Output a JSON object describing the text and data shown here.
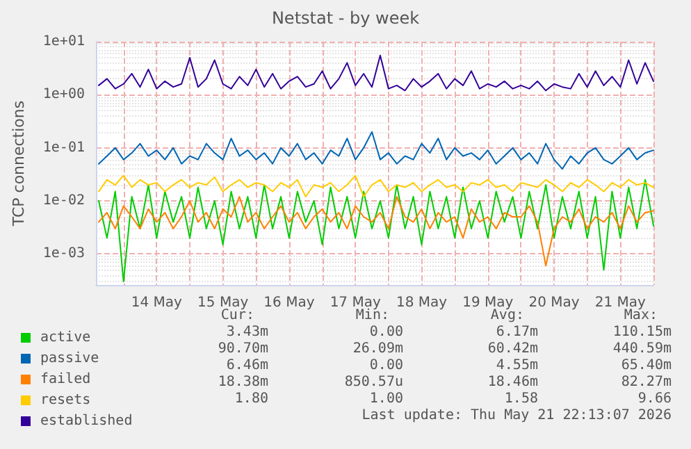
{
  "chart_data": {
    "type": "line",
    "title": "Netstat - by week",
    "ylabel": "TCP connections",
    "log": "y",
    "grid": true,
    "legend": "bottom left",
    "marker": "none",
    "line_style": "solid",
    "xlim": [
      "2026-05-13T14:00",
      "2026-05-22T00:00"
    ],
    "xticks": [
      {
        "value": "2026-05-14T00:00",
        "label": null
      },
      {
        "value": "2026-05-14T12:00",
        "label": "14 May"
      },
      {
        "value": "2026-05-15T00:00",
        "label": null
      },
      {
        "value": "2026-05-15T12:00",
        "label": "15 May"
      },
      {
        "value": "2026-05-16T00:00",
        "label": null
      },
      {
        "value": "2026-05-16T12:00",
        "label": "16 May"
      },
      {
        "value": "2026-05-17T00:00",
        "label": null
      },
      {
        "value": "2026-05-17T12:00",
        "label": "17 May"
      },
      {
        "value": "2026-05-18T00:00",
        "label": null
      },
      {
        "value": "2026-05-18T12:00",
        "label": "18 May"
      },
      {
        "value": "2026-05-19T00:00",
        "label": null
      },
      {
        "value": "2026-05-19T12:00",
        "label": "19 May"
      },
      {
        "value": "2026-05-20T00:00",
        "label": null
      },
      {
        "value": "2026-05-20T12:00",
        "label": "20 May"
      },
      {
        "value": "2026-05-21T00:00",
        "label": null
      },
      {
        "value": "2026-05-21T12:00",
        "label": "21 May"
      },
      {
        "value": "2026-05-22T00:00",
        "label": null
      }
    ],
    "ylim": [
      0.00026,
      10
    ],
    "yticks": [
      {
        "value": 0.001,
        "label": "1e-03"
      },
      {
        "value": 0.01,
        "label": "1e-02"
      },
      {
        "value": 0.1,
        "label": "1e-01"
      },
      {
        "value": 1,
        "label": "1e+00"
      },
      {
        "value": 10,
        "label": "1e+01"
      }
    ],
    "x": [
      "2026-05-13T15:00",
      "2026-05-13T18:00",
      "2026-05-13T21:00",
      "2026-05-14T00:00",
      "2026-05-14T03:00",
      "2026-05-14T06:00",
      "2026-05-14T09:00",
      "2026-05-14T12:00",
      "2026-05-14T15:00",
      "2026-05-14T18:00",
      "2026-05-14T21:00",
      "2026-05-15T00:00",
      "2026-05-15T03:00",
      "2026-05-15T06:00",
      "2026-05-15T09:00",
      "2026-05-15T12:00",
      "2026-05-15T15:00",
      "2026-05-15T18:00",
      "2026-05-15T21:00",
      "2026-05-16T00:00",
      "2026-05-16T03:00",
      "2026-05-16T06:00",
      "2026-05-16T09:00",
      "2026-05-16T12:00",
      "2026-05-16T15:00",
      "2026-05-16T18:00",
      "2026-05-16T21:00",
      "2026-05-17T00:00",
      "2026-05-17T03:00",
      "2026-05-17T06:00",
      "2026-05-17T09:00",
      "2026-05-17T12:00",
      "2026-05-17T15:00",
      "2026-05-17T18:00",
      "2026-05-17T21:00",
      "2026-05-18T00:00",
      "2026-05-18T03:00",
      "2026-05-18T06:00",
      "2026-05-18T09:00",
      "2026-05-18T12:00",
      "2026-05-18T15:00",
      "2026-05-18T18:00",
      "2026-05-18T21:00",
      "2026-05-19T00:00",
      "2026-05-19T03:00",
      "2026-05-19T06:00",
      "2026-05-19T09:00",
      "2026-05-19T12:00",
      "2026-05-19T15:00",
      "2026-05-19T18:00",
      "2026-05-19T21:00",
      "2026-05-20T00:00",
      "2026-05-20T03:00",
      "2026-05-20T06:00",
      "2026-05-20T09:00",
      "2026-05-20T12:00",
      "2026-05-20T15:00",
      "2026-05-20T18:00",
      "2026-05-20T21:00",
      "2026-05-21T00:00",
      "2026-05-21T03:00",
      "2026-05-21T06:00",
      "2026-05-21T09:00",
      "2026-05-21T12:00",
      "2026-05-21T15:00",
      "2026-05-21T18:00",
      "2026-05-21T21:00",
      "2026-05-22T00:00"
    ],
    "series": [
      {
        "name": "active",
        "color": "#00cc00",
        "values": [
          0.01,
          0.002,
          0.015,
          0.0003,
          0.012,
          0.003,
          0.02,
          0.002,
          0.015,
          0.004,
          0.012,
          0.002,
          0.018,
          0.003,
          0.01,
          0.0015,
          0.015,
          0.003,
          0.012,
          0.002,
          0.02,
          0.003,
          0.012,
          0.002,
          0.015,
          0.004,
          0.01,
          0.0015,
          0.018,
          0.003,
          0.012,
          0.002,
          0.015,
          0.003,
          0.01,
          0.002,
          0.02,
          0.003,
          0.012,
          0.0015,
          0.015,
          0.003,
          0.012,
          0.002,
          0.018,
          0.003,
          0.01,
          0.002,
          0.015,
          0.004,
          0.012,
          0.002,
          0.015,
          0.003,
          0.02,
          0.002,
          0.012,
          0.003,
          0.015,
          0.002,
          0.012,
          0.0005,
          0.015,
          0.002,
          0.018,
          0.003,
          0.025,
          0.0034
        ]
      },
      {
        "name": "passive",
        "color": "#0066b3",
        "values": [
          0.05,
          0.07,
          0.1,
          0.06,
          0.08,
          0.12,
          0.07,
          0.09,
          0.06,
          0.1,
          0.05,
          0.07,
          0.06,
          0.12,
          0.08,
          0.06,
          0.15,
          0.07,
          0.09,
          0.06,
          0.08,
          0.05,
          0.1,
          0.07,
          0.12,
          0.06,
          0.08,
          0.05,
          0.09,
          0.07,
          0.15,
          0.06,
          0.1,
          0.2,
          0.06,
          0.08,
          0.05,
          0.07,
          0.06,
          0.12,
          0.08,
          0.15,
          0.06,
          0.1,
          0.07,
          0.08,
          0.06,
          0.09,
          0.05,
          0.07,
          0.1,
          0.06,
          0.08,
          0.05,
          0.12,
          0.06,
          0.04,
          0.07,
          0.05,
          0.08,
          0.1,
          0.06,
          0.05,
          0.07,
          0.1,
          0.06,
          0.08,
          0.09
        ]
      },
      {
        "name": "failed",
        "color": "#ff8000",
        "values": [
          0.004,
          0.006,
          0.003,
          0.008,
          0.005,
          0.003,
          0.007,
          0.004,
          0.006,
          0.003,
          0.005,
          0.01,
          0.004,
          0.006,
          0.003,
          0.007,
          0.005,
          0.012,
          0.004,
          0.006,
          0.003,
          0.005,
          0.008,
          0.004,
          0.006,
          0.003,
          0.005,
          0.007,
          0.004,
          0.006,
          0.003,
          0.008,
          0.005,
          0.004,
          0.006,
          0.003,
          0.012,
          0.005,
          0.004,
          0.007,
          0.003,
          0.006,
          0.004,
          0.005,
          0.002,
          0.007,
          0.004,
          0.005,
          0.003,
          0.006,
          0.005,
          0.005,
          0.008,
          0.004,
          0.0006,
          0.003,
          0.005,
          0.004,
          0.007,
          0.003,
          0.005,
          0.004,
          0.006,
          0.003,
          0.008,
          0.004,
          0.006,
          0.0065
        ]
      },
      {
        "name": "resets",
        "color": "#ffcc00",
        "values": [
          0.015,
          0.025,
          0.02,
          0.03,
          0.018,
          0.025,
          0.02,
          0.022,
          0.015,
          0.02,
          0.025,
          0.018,
          0.022,
          0.02,
          0.028,
          0.015,
          0.02,
          0.025,
          0.018,
          0.022,
          0.02,
          0.015,
          0.022,
          0.018,
          0.025,
          0.012,
          0.02,
          0.018,
          0.022,
          0.015,
          0.02,
          0.03,
          0.012,
          0.02,
          0.025,
          0.015,
          0.02,
          0.018,
          0.022,
          0.015,
          0.02,
          0.025,
          0.018,
          0.02,
          0.015,
          0.022,
          0.02,
          0.025,
          0.018,
          0.02,
          0.015,
          0.022,
          0.02,
          0.018,
          0.025,
          0.02,
          0.015,
          0.022,
          0.018,
          0.025,
          0.02,
          0.015,
          0.022,
          0.018,
          0.025,
          0.02,
          0.022,
          0.018
        ]
      },
      {
        "name": "established",
        "color": "#330099",
        "values": [
          1.5,
          2.0,
          1.3,
          1.6,
          2.5,
          1.4,
          3.0,
          1.3,
          1.8,
          1.4,
          1.6,
          5.0,
          1.4,
          2.0,
          4.5,
          1.6,
          1.3,
          2.2,
          1.5,
          3.0,
          1.4,
          2.5,
          1.3,
          1.8,
          2.2,
          1.4,
          1.6,
          2.8,
          1.3,
          2.0,
          4.0,
          1.5,
          2.5,
          1.4,
          5.5,
          1.3,
          1.5,
          1.2,
          2.0,
          1.4,
          1.8,
          2.5,
          1.3,
          2.0,
          1.5,
          2.8,
          1.3,
          1.6,
          1.4,
          1.8,
          1.3,
          1.5,
          1.3,
          1.8,
          1.2,
          1.6,
          1.4,
          1.3,
          2.5,
          1.4,
          2.8,
          1.5,
          2.2,
          1.4,
          4.5,
          1.6,
          4.0,
          1.8
        ]
      }
    ],
    "annotations": [
      "Cur:",
      "Min:",
      "Avg:",
      "Max:",
      "3.43m",
      "0.00",
      "6.17m",
      "110.15m",
      "90.70m",
      "26.09m",
      "60.42m",
      "440.59m",
      "6.46m",
      "0.00",
      "4.55m",
      "65.40m",
      "18.38m",
      "850.57u",
      "18.46m",
      "82.27m",
      "1.80",
      "1.00",
      "1.58",
      "9.66",
      "Last update: Thu May 21 22:13:07 2026"
    ]
  }
}
